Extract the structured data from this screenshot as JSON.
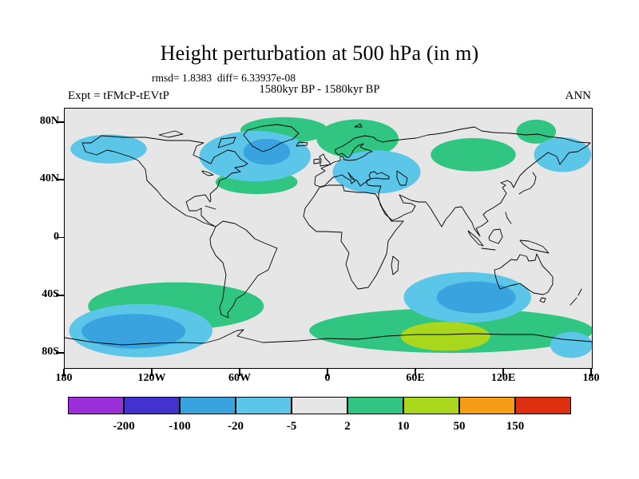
{
  "title": "Height perturbation at 500 hPa (in m)",
  "annotations": {
    "stats_line": "rmsd= 1.8383  diff= 6.33937e-08",
    "comparison_line": "1580kyr BP - 1580kyr BP",
    "experiment_label": "Expt = tFMcP-tEVtP",
    "season_label": "ANN"
  },
  "axes": {
    "lat_ticks": [
      {
        "label": "80N",
        "lat": 80
      },
      {
        "label": "40N",
        "lat": 40
      },
      {
        "label": "0",
        "lat": 0
      },
      {
        "label": "40S",
        "lat": -40
      },
      {
        "label": "80S",
        "lat": -80
      }
    ],
    "lon_ticks": [
      {
        "label": "180",
        "lon": -180
      },
      {
        "label": "120W",
        "lon": -120
      },
      {
        "label": "60W",
        "lon": -60
      },
      {
        "label": "0",
        "lon": 0
      },
      {
        "label": "60E",
        "lon": 60
      },
      {
        "label": "120E",
        "lon": 120
      },
      {
        "label": "180",
        "lon": 180
      }
    ]
  },
  "colorbar": {
    "cell_colors": [
      "#9B2FD9",
      "#4333CE",
      "#39A3DF",
      "#5CC6E8",
      "#E6E6E6",
      "#30C581",
      "#A9D71E",
      "#F59D15",
      "#DC3010"
    ],
    "boundary_labels": [
      "-200",
      "-100",
      "-20",
      "-5",
      "2",
      "10",
      "50",
      "150"
    ]
  },
  "map": {
    "background": "#E6E6E6",
    "coastline_color": "#000000"
  },
  "chart_data": {
    "type": "heatmap",
    "title": "Height perturbation at 500 hPa (in m)",
    "variable": "Height perturbation at 500 hPa",
    "units": "m",
    "season": "ANN",
    "experiment": "tFMcP-tEVtP",
    "comparison": "1580kyr BP - 1580kyr BP",
    "rmsd": 1.8383,
    "diff": 6.33937e-08,
    "projection": "equirectangular",
    "lon_range": [
      -180,
      180
    ],
    "lat_range": [
      -90,
      90
    ],
    "contour_levels": [
      -200,
      -100,
      -20,
      -5,
      2,
      10,
      50,
      150
    ],
    "level_colors": [
      "#9B2FD9",
      "#4333CE",
      "#39A3DF",
      "#5CC6E8",
      "#E6E6E6",
      "#30C581",
      "#A9D71E",
      "#F59D15",
      "#DC3010"
    ],
    "background_value_range": "-5 to 2",
    "anomaly_regions": [
      {
        "name": "greenland-north-atlantic",
        "lon": -30,
        "lat": 75,
        "rx_deg": 30,
        "ry_deg": 9,
        "value_range": "2 to 10",
        "color": "#30C581"
      },
      {
        "name": "scandinavia-barents",
        "lon": 20,
        "lat": 69,
        "rx_deg": 28,
        "ry_deg": 13.5,
        "value_range": "2 to 10",
        "color": "#30C581"
      },
      {
        "name": "central-north-atlantic",
        "lon": -49,
        "lat": 39,
        "rx_deg": 28,
        "ry_deg": 8.3,
        "value_range": "2 to 10",
        "color": "#30C581"
      },
      {
        "name": "central-siberia",
        "lon": 99,
        "lat": 58,
        "rx_deg": 29,
        "ry_deg": 11.5,
        "value_range": "2 to 10",
        "color": "#30C581"
      },
      {
        "name": "east-siberian-sea",
        "lon": 142,
        "lat": 74,
        "rx_deg": 13.5,
        "ry_deg": 8.3,
        "value_range": "2 to 10",
        "color": "#30C581"
      },
      {
        "name": "south-pacific",
        "lon": -104,
        "lat": -47,
        "rx_deg": 60,
        "ry_deg": 16.5,
        "value_range": "2 to 10",
        "color": "#30C581"
      },
      {
        "name": "southern-ocean-indian",
        "lon": 84,
        "lat": -64,
        "rx_deg": 97,
        "ry_deg": 15.5,
        "value_range": "2 to 10",
        "color": "#30C581"
      },
      {
        "name": "antarctic-indian-core",
        "lon": 80,
        "lat": -68,
        "rx_deg": 30.5,
        "ry_deg": 10,
        "value_range": "10 to 50",
        "color": "#A9D71E"
      },
      {
        "name": "bering-north-pacific",
        "lon": -150,
        "lat": 62,
        "rx_deg": 26,
        "ry_deg": 10,
        "value_range": "-20 to -5",
        "color": "#5CC6E8"
      },
      {
        "name": "canada-north-atlantic",
        "lon": -50,
        "lat": 57,
        "rx_deg": 38,
        "ry_deg": 17.5,
        "value_range": "-20 to -5",
        "color": "#5CC6E8"
      },
      {
        "name": "europe-mediterranean",
        "lon": 33,
        "lat": 46,
        "rx_deg": 30,
        "ry_deg": 15,
        "value_range": "-20 to -5",
        "color": "#5CC6E8"
      },
      {
        "name": "okhotsk-kamchatka",
        "lon": 160,
        "lat": 58,
        "rx_deg": 19.5,
        "ry_deg": 12,
        "value_range": "-20 to -5",
        "color": "#5CC6E8"
      },
      {
        "name": "south-indian-ocean",
        "lon": 95,
        "lat": -41,
        "rx_deg": 43.5,
        "ry_deg": 17.5,
        "value_range": "-20 to -5",
        "color": "#5CC6E8"
      },
      {
        "name": "southeast-pacific",
        "lon": -128,
        "lat": -64,
        "rx_deg": 49,
        "ry_deg": 18.5,
        "value_range": "-20 to -5",
        "color": "#5CC6E8"
      },
      {
        "name": "ross-sea",
        "lon": 166,
        "lat": -74,
        "rx_deg": 14.5,
        "ry_deg": 9,
        "value_range": "-20 to -5",
        "color": "#5CC6E8"
      },
      {
        "name": "labrador-sea-core",
        "lon": -42,
        "lat": 60,
        "rx_deg": 16,
        "ry_deg": 9,
        "value_range": "-100 to -20",
        "color": "#39A3DF"
      },
      {
        "name": "south-indian-core",
        "lon": 101,
        "lat": -41,
        "rx_deg": 27,
        "ry_deg": 11,
        "value_range": "-100 to -20",
        "color": "#39A3DF"
      },
      {
        "name": "southeast-pacific-core",
        "lon": -133,
        "lat": -64.5,
        "rx_deg": 35.5,
        "ry_deg": 12,
        "value_range": "-100 to -20",
        "color": "#39A3DF"
      }
    ]
  }
}
